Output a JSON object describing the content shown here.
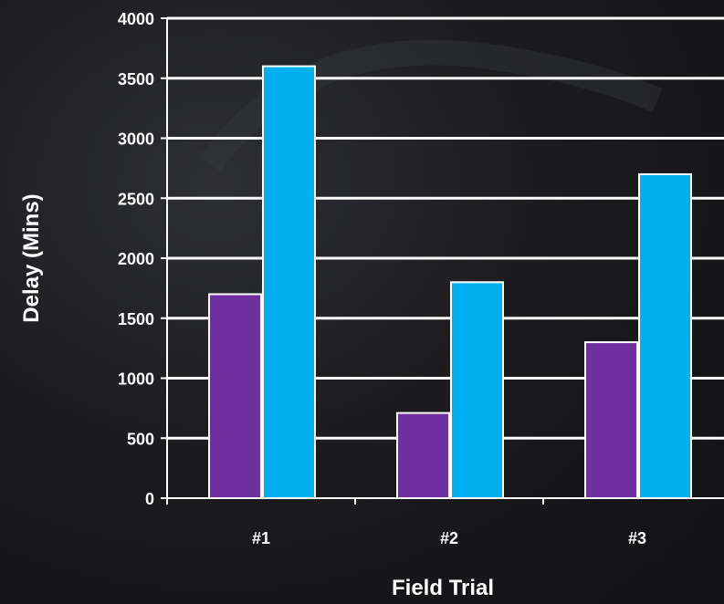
{
  "chart_data": {
    "type": "bar",
    "title": "",
    "xlabel": "Field Trial",
    "ylabel": "Delay (Mins)",
    "categories": [
      "#1",
      "#2",
      "#3"
    ],
    "series": [
      {
        "color": "#7030a0",
        "values": [
          1700,
          710,
          1300
        ]
      },
      {
        "color": "#00b0f0",
        "values": [
          3600,
          1800,
          2700
        ]
      }
    ],
    "ylim": [
      0,
      4000
    ],
    "yticks": [
      0,
      500,
      1000,
      1500,
      2000,
      2500,
      3000,
      3500,
      4000
    ],
    "grid": true,
    "legend": "none"
  },
  "colors": {
    "background": "#1c1c1f",
    "gridline": "#ffffff",
    "axis": "#ffffff",
    "text": "#ffffff",
    "bar_border": "#ffffff"
  }
}
